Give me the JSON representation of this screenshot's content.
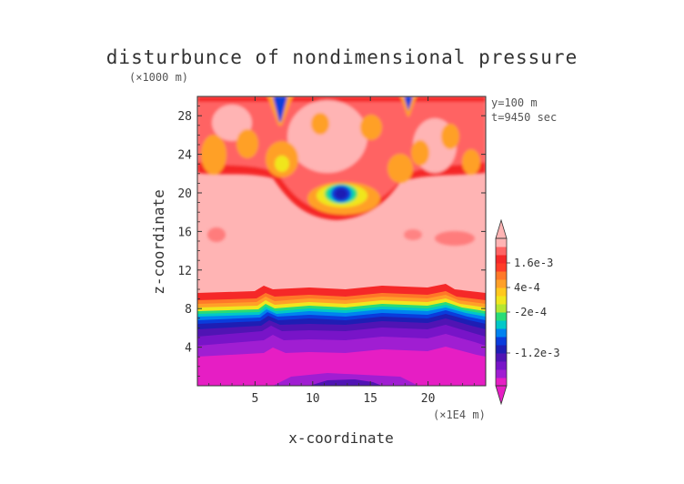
{
  "chart_data": {
    "type": "heatmap",
    "title": "disturbunce of nondimensional pressure",
    "xlabel": "x-coordinate",
    "ylabel": "z-coordinate",
    "x_unit": "(×1E4 m)",
    "y_unit": "(×1000 m)",
    "annotations": [
      "y=100 m",
      "t=9450 sec"
    ],
    "xlim": [
      0,
      25
    ],
    "ylim": [
      0,
      30
    ],
    "x_ticks": [
      5,
      10,
      15,
      20
    ],
    "x_tick_labels": [
      "5",
      "10",
      "15",
      "20"
    ],
    "y_ticks": [
      4,
      8,
      12,
      16,
      20,
      24,
      28
    ],
    "y_tick_labels": [
      "4",
      "8",
      "12",
      "16",
      "20",
      "24",
      "28"
    ],
    "colorbar": {
      "colors": [
        "#e61ec4",
        "#a01ed2",
        "#7814c8",
        "#5014b4",
        "#1e1eb4",
        "#0a3cdc",
        "#0082f0",
        "#00c8c8",
        "#28dc78",
        "#b4e632",
        "#f0e61e",
        "#ffc81e",
        "#ffa028",
        "#ff7828",
        "#ff3c28",
        "#f52828",
        "#ff6464",
        "#ffb4b4"
      ],
      "labels": [
        {
          "text": "1.6e-3",
          "index": 15
        },
        {
          "text": "4e-4",
          "index": 12
        },
        {
          "text": "-2e-4",
          "index": 9
        },
        {
          "text": "-1.2e-3",
          "index": 4
        }
      ]
    }
  }
}
